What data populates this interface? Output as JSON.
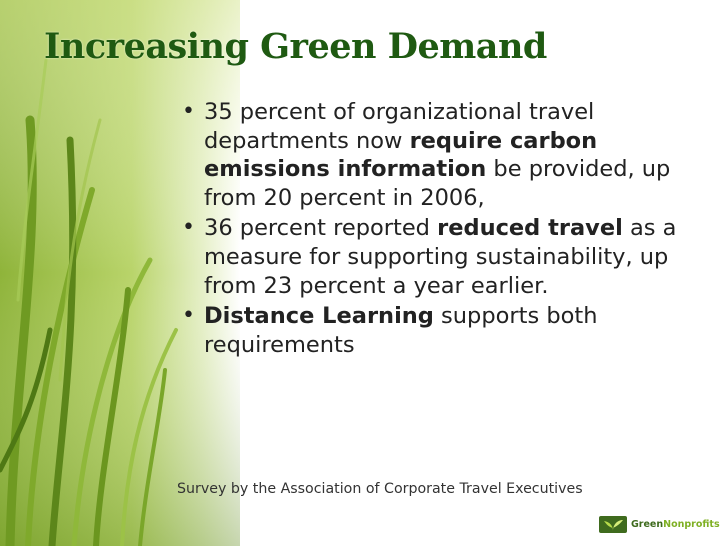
{
  "slide": {
    "title": "Increasing Green Demand",
    "bullets": [
      {
        "parts": [
          {
            "text": "35 percent  of organizational travel departments now ",
            "bold": false
          },
          {
            "text": "require carbon emissions information",
            "bold": true
          },
          {
            "text": " be provided, up from 20 percent in 2006,",
            "bold": false
          }
        ]
      },
      {
        "parts": [
          {
            "text": "36 percent reported ",
            "bold": false
          },
          {
            "text": "reduced travel",
            "bold": true
          },
          {
            "text": " as a measure for supporting sustainability, up from 23 percent a year earlier.",
            "bold": false
          }
        ]
      },
      {
        "parts": [
          {
            "text": "Distance Learning",
            "bold": true
          },
          {
            "text": " supports both requirements",
            "bold": false
          }
        ]
      }
    ],
    "bullet_glyph": "•",
    "footnote": "Survey by the Association of Corporate Travel Executives",
    "logo": {
      "word_part1": "Green",
      "word_part2": "Nonprofits",
      "icon": "sprout-icon"
    },
    "colors": {
      "title": "#1f5a12",
      "logo_dark": "#3f6b1e",
      "logo_light": "#7fb024"
    }
  }
}
